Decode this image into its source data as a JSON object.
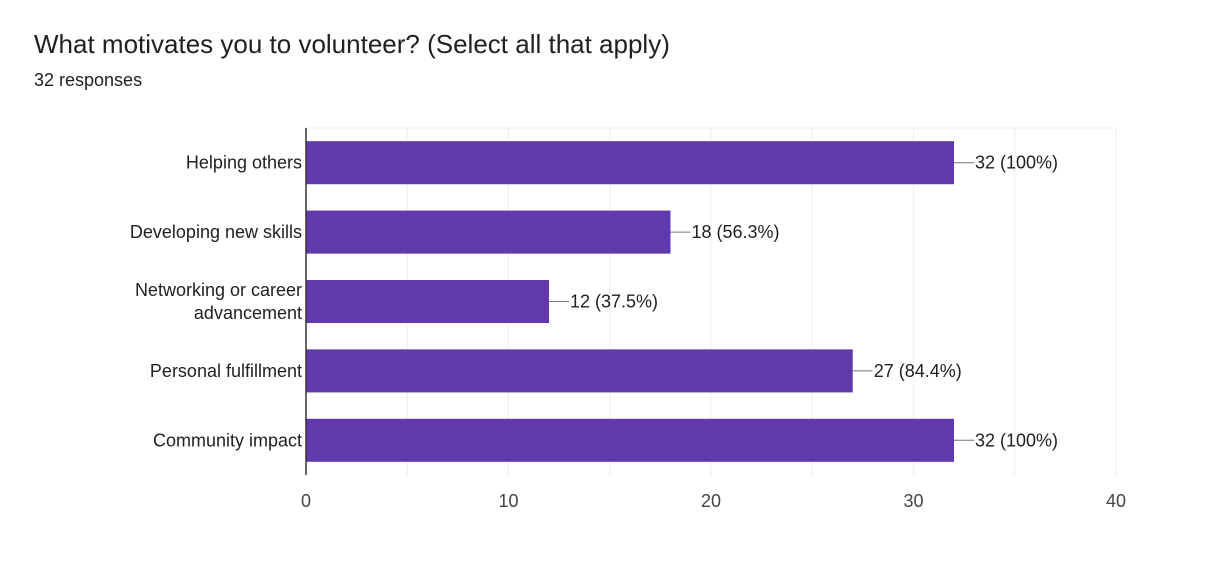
{
  "question": {
    "title": "What motivates you to volunteer? (Select all that apply)",
    "responses": "32 responses"
  },
  "chart_data": {
    "type": "bar",
    "orientation": "horizontal",
    "categories": [
      [
        "Helping others"
      ],
      [
        "Developing new skills"
      ],
      [
        "Networking or career",
        "advancement"
      ],
      [
        "Personal fulfillment"
      ],
      [
        "Community impact"
      ]
    ],
    "values": [
      32,
      18,
      12,
      27,
      32
    ],
    "data_labels": [
      "32 (100%)",
      "18 (56.3%)",
      "12 (37.5%)",
      "27 (84.4%)",
      "32 (100%)"
    ],
    "xlim": [
      0,
      40
    ],
    "xticks": [
      0,
      10,
      20,
      30,
      40
    ],
    "grid": true,
    "colors": {
      "bar": "#6039ad",
      "grid": "#eeeeee",
      "axis": "#333333",
      "leader": "#777777"
    }
  }
}
